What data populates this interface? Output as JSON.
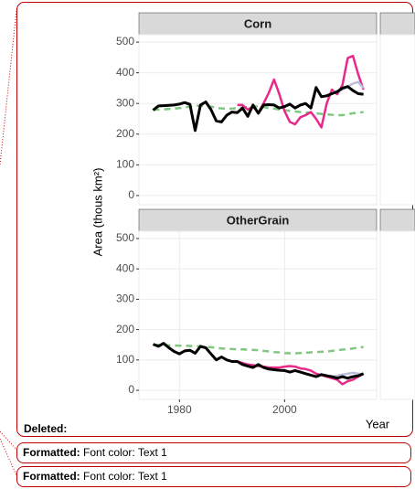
{
  "chart_data": [
    {
      "type": "line",
      "title": "Corn",
      "ylabel": "Area (thous km²)",
      "x": [
        1975,
        1976,
        1977,
        1978,
        1979,
        1980,
        1981,
        1982,
        1983,
        1984,
        1985,
        1986,
        1987,
        1988,
        1989,
        1990,
        1991,
        1992,
        1993,
        1994,
        1995,
        1996,
        1997,
        1998,
        1999,
        2000,
        2001,
        2002,
        2003,
        2004,
        2005,
        2006,
        2007,
        2008,
        2009,
        2010,
        2011,
        2012,
        2013,
        2014,
        2015
      ],
      "xlim": [
        1972.3,
        2017.5
      ],
      "ylim": [
        -30,
        524
      ],
      "yticks": [
        0,
        100,
        200,
        300,
        400,
        500
      ],
      "grid": true,
      "series": [
        {
          "color": "#7fc97f",
          "dashed": true,
          "values": [
            280,
            280,
            281,
            282,
            283,
            285,
            287,
            290,
            292,
            293,
            292,
            290,
            286,
            284,
            283,
            283,
            285,
            287,
            290,
            291,
            290,
            288,
            285,
            283,
            280,
            278,
            276,
            274,
            272,
            270,
            270,
            268,
            266,
            265,
            263,
            262,
            262,
            265,
            268,
            270,
            272
          ]
        },
        {
          "color": "#e7298a",
          "values": [
            null,
            null,
            null,
            null,
            null,
            null,
            null,
            null,
            null,
            null,
            null,
            null,
            null,
            null,
            null,
            null,
            295,
            295,
            280,
            290,
            270,
            300,
            335,
            378,
            330,
            275,
            240,
            232,
            255,
            262,
            272,
            250,
            222,
            300,
            345,
            330,
            360,
            448,
            455,
            395,
            345
          ]
        },
        {
          "color": "#bcbddc",
          "values": [
            null,
            null,
            null,
            null,
            null,
            null,
            null,
            null,
            null,
            null,
            null,
            null,
            null,
            null,
            null,
            null,
            null,
            null,
            null,
            null,
            null,
            null,
            null,
            null,
            null,
            null,
            null,
            null,
            null,
            null,
            null,
            null,
            null,
            null,
            335,
            340,
            345,
            355,
            365,
            370,
            350
          ]
        },
        {
          "color": "#000000",
          "values": [
            278,
            292,
            293,
            294,
            295,
            298,
            303,
            297,
            212,
            295,
            305,
            280,
            243,
            240,
            262,
            272,
            270,
            285,
            258,
            295,
            268,
            295,
            296,
            295,
            285,
            290,
            298,
            285,
            295,
            300,
            285,
            352,
            322,
            325,
            332,
            338,
            350,
            355,
            342,
            332,
            330
          ]
        }
      ]
    },
    {
      "type": "line",
      "title": "OtherGrain",
      "xlabel": "Year",
      "x": [
        1975,
        1976,
        1977,
        1978,
        1979,
        1980,
        1981,
        1982,
        1983,
        1984,
        1985,
        1986,
        1987,
        1988,
        1989,
        1990,
        1991,
        1992,
        1993,
        1994,
        1995,
        1996,
        1997,
        1998,
        1999,
        2000,
        2001,
        2002,
        2003,
        2004,
        2005,
        2006,
        2007,
        2008,
        2009,
        2010,
        2011,
        2012,
        2013,
        2014,
        2015
      ],
      "xlim": [
        1972.3,
        2017.5
      ],
      "xticks": [
        1980,
        2000
      ],
      "ylim": [
        -30,
        524
      ],
      "yticks": [
        0,
        100,
        200,
        300,
        400,
        500
      ],
      "grid": true,
      "series": [
        {
          "color": "#7fc97f",
          "dashed": true,
          "values": [
            150,
            150,
            150,
            148,
            148,
            147,
            147,
            146,
            145,
            145,
            143,
            142,
            140,
            138,
            137,
            136,
            135,
            135,
            134,
            133,
            132,
            130,
            128,
            126,
            125,
            123,
            122,
            122,
            123,
            124,
            125,
            126,
            127,
            128,
            130,
            132,
            134,
            136,
            138,
            140,
            143
          ]
        },
        {
          "color": "#e7298a",
          "values": [
            null,
            null,
            null,
            null,
            null,
            null,
            null,
            null,
            null,
            null,
            null,
            null,
            null,
            null,
            null,
            null,
            95,
            90,
            85,
            83,
            80,
            78,
            75,
            75,
            75,
            78,
            80,
            78,
            72,
            70,
            65,
            55,
            50,
            45,
            40,
            35,
            20,
            30,
            35,
            45,
            55
          ]
        },
        {
          "color": "#bcbddc",
          "values": [
            null,
            null,
            null,
            null,
            null,
            null,
            null,
            null,
            null,
            null,
            null,
            null,
            null,
            null,
            null,
            null,
            null,
            null,
            null,
            null,
            null,
            null,
            null,
            null,
            null,
            null,
            null,
            null,
            null,
            null,
            null,
            null,
            null,
            null,
            45,
            48,
            52,
            55,
            58,
            55,
            52
          ]
        },
        {
          "color": "#000000",
          "values": [
            152,
            145,
            155,
            140,
            128,
            120,
            130,
            132,
            122,
            145,
            140,
            120,
            100,
            110,
            100,
            95,
            95,
            85,
            80,
            75,
            85,
            75,
            70,
            68,
            66,
            65,
            60,
            65,
            60,
            55,
            50,
            45,
            52,
            48,
            45,
            40,
            45,
            40,
            45,
            48,
            55
          ]
        }
      ]
    }
  ],
  "deleted": "Deleted:",
  "formatted": [
    {
      "label": "Formatted:",
      "text": "Font color: Text 1"
    },
    {
      "label": "Formatted:",
      "text": "Font color: Text 1"
    }
  ]
}
